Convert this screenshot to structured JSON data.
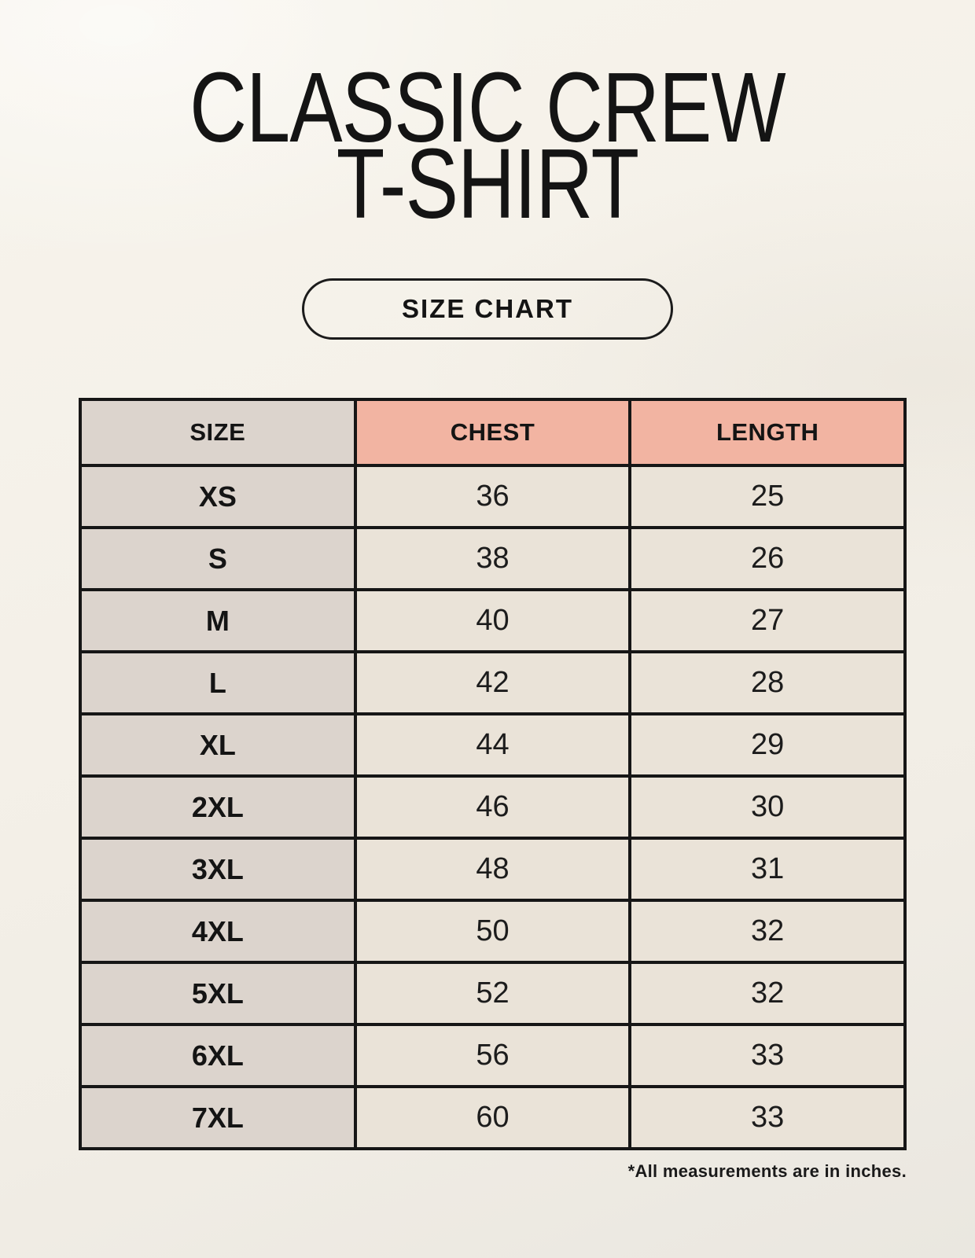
{
  "page": {
    "title": {
      "line1": "CLASSIC CREW",
      "line2": "T-SHIRT"
    },
    "size_chart_button": "SIZE CHART",
    "footnote": "*All measurements are in inches."
  },
  "colors": {
    "page_background": "#f4f0e8",
    "header_accent": "#f2b4a2",
    "size_column_bg": "#dcd4cd",
    "cell_bg": "#eae3d8",
    "border": "#161616",
    "text": "#161616"
  },
  "chart_data": {
    "type": "table",
    "title": "CLASSIC CREW T-SHIRT",
    "unit_note": "*All measurements are in inches.",
    "columns": [
      "SIZE",
      "CHEST",
      "LENGTH"
    ],
    "rows": [
      [
        "XS",
        36,
        25
      ],
      [
        "S",
        38,
        26
      ],
      [
        "M",
        40,
        27
      ],
      [
        "L",
        42,
        28
      ],
      [
        "XL",
        44,
        29
      ],
      [
        "2XL",
        46,
        30
      ],
      [
        "3XL",
        48,
        31
      ],
      [
        "4XL",
        50,
        32
      ],
      [
        "5XL",
        52,
        32
      ],
      [
        "6XL",
        56,
        33
      ],
      [
        "7XL",
        60,
        33
      ]
    ]
  }
}
